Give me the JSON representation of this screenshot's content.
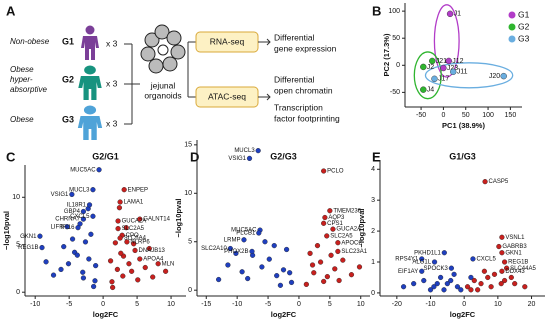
{
  "figure_labels": [
    "A",
    "B",
    "C",
    "D",
    "E"
  ],
  "diagram": {
    "groups": [
      {
        "lines": [
          "Non-obese"
        ],
        "id": "G1",
        "count": "x 3"
      },
      {
        "lines": [
          "Obese",
          "hyper-",
          "absorptive"
        ],
        "id": "G2",
        "count": "x 3"
      },
      {
        "lines": [
          "Obese"
        ],
        "id": "G3",
        "count": "x 3"
      }
    ],
    "organoid_lines": [
      "jejunal",
      "organoids"
    ],
    "assays": [
      {
        "name": "RNA-seq",
        "outputs": [
          [
            "Differential",
            "gene expression"
          ]
        ]
      },
      {
        "name": "ATAC-seq",
        "outputs": [
          [
            "Differential",
            "open chromatin"
          ],
          [
            "Transcription",
            "factor footprinting"
          ]
        ]
      }
    ]
  },
  "chart_data": [
    {
      "type": "scatter",
      "xlabel": "PC1 (38.9%)",
      "ylabel": "PC2 (17.3%)",
      "xlim": [
        -86,
        176
      ],
      "ylim": [
        -77,
        115
      ],
      "xticks": [
        -50,
        0,
        50,
        100,
        150
      ],
      "yticks": [
        -50,
        0,
        50,
        100
      ],
      "legend": "upper right",
      "series": [
        {
          "name": "G1",
          "color": "#b23cc8",
          "x": [
            15,
            12,
            0
          ],
          "values": [
            95,
            8,
            -5
          ],
          "labels": [
            "J1",
            "J12",
            "J23"
          ]
        },
        {
          "name": "G2",
          "color": "#2fb52f",
          "x": [
            -25,
            -45,
            -45
          ],
          "values": [
            8,
            -3,
            -45
          ],
          "labels": [
            "J21",
            "J2",
            "J4"
          ]
        },
        {
          "name": "G3",
          "color": "#6aaee0",
          "x": [
            -20,
            22,
            135
          ],
          "values": [
            -25,
            -12,
            -20
          ],
          "labels": [
            "J17",
            "J11",
            "J20"
          ]
        }
      ]
    },
    {
      "type": "volcano",
      "title": "G2/G1",
      "xlabel": "log2FC",
      "ylabel": "−log10pval",
      "xlim": [
        -11.5,
        12.2
      ],
      "ylim": [
        -0.4,
        13.4
      ],
      "xticks": [
        -10,
        -5,
        0,
        5,
        10
      ],
      "yticks": [
        0,
        5,
        10
      ],
      "series": [
        {
          "color": "#1f3fbf",
          "x": [
            -1.2,
            -2.1,
            -3,
            -4.2,
            -1.8,
            -2.6,
            -5.1,
            -3.4,
            -6.2,
            -1.4,
            -2.9,
            -4.5,
            -7.3,
            -1.1,
            -3.8,
            -2.2,
            -5.8,
            -8.4
          ],
          "values": [
            1.2,
            3.5,
            2.1,
            4.2,
            6.1,
            5.3,
            3,
            7.2,
            2.4,
            0.6,
            1.5,
            5.6,
            1.8,
            2.8,
            3.9,
            8.8,
            4.8,
            3.2
          ]
        },
        {
          "color": "#c8201e",
          "x": [
            1.3,
            2.1,
            3,
            4.2,
            1.8,
            2.6,
            5.1,
            3.4,
            6.2,
            1.4,
            2.9,
            4.5,
            7.3,
            1.1,
            3.8,
            6.8,
            9.2,
            2.4
          ],
          "values": [
            1.1,
            2.4,
            3.8,
            2.2,
            5.2,
            4.1,
            1.3,
            6.8,
            2.6,
            0.5,
            1.7,
            5.1,
            1.6,
            3.3,
            3,
            4.6,
            2.2,
            8.9
          ]
        },
        {
          "color": "#1f3fbf",
          "x": [
            -0.6,
            -1.5,
            -4.6,
            -2,
            -2.9,
            -2.9,
            -1.5,
            -5.3,
            -3.7,
            -9.3,
            -9
          ],
          "values": [
            12.9,
            10.8,
            10.3,
            9.2,
            8.5,
            7.7,
            8,
            6.9,
            6.8,
            5.9,
            4.7
          ],
          "labels": [
            "MUC5AC",
            "MUCL3",
            "VSIG1",
            "IL18R1",
            "GBP4",
            "CHRNA7",
            "CXCL5",
            "LIFR",
            "IFI16",
            "GKN1",
            "REG1B"
          ]
        },
        {
          "color": "#c8201e",
          "x": [
            3.1,
            2.5,
            5.4,
            2.2,
            2.2,
            2.8,
            2.5,
            3.5,
            4.7,
            5.4,
            8.1
          ],
          "values": [
            10.8,
            9.5,
            7.7,
            7.5,
            6.7,
            6,
            5.7,
            5.3,
            4.4,
            3.5,
            3
          ],
          "labels": [
            "ENPEP",
            "LAMA1",
            "GALNT14",
            "GUCA2A",
            "SLC2A5",
            "CPO",
            "SLC6A4",
            "NLRP6",
            "DNAJB13",
            "APOA4",
            "MLN"
          ]
        }
      ]
    },
    {
      "type": "volcano",
      "title": "G2/G3",
      "xlabel": "log2FC",
      "ylabel": "−log10pval",
      "xlim": [
        -16.5,
        11.5
      ],
      "ylim": [
        -0.6,
        15.5
      ],
      "xticks": [
        -15,
        -10,
        -5,
        0,
        5,
        10
      ],
      "yticks": [
        0,
        5,
        10,
        15
      ],
      "series": [
        {
          "color": "#1f3fbf",
          "x": [
            -1.2,
            -2.5,
            -3.6,
            -4.8,
            -6,
            -7.5,
            -9.2,
            -11.5,
            -2,
            -3,
            -5.5,
            -8.3,
            -1.5,
            -4,
            -10.2,
            -13
          ],
          "values": [
            0.8,
            2.1,
            1.5,
            3.2,
            2.4,
            3.6,
            1.9,
            2.6,
            4.2,
            0.5,
            5,
            1.2,
            1.8,
            4.6,
            3.8,
            1.1
          ]
        },
        {
          "color": "#c8201e",
          "x": [
            1.2,
            2.4,
            3.5,
            4.6,
            5.8,
            7.1,
            8.5,
            1.8,
            3,
            4,
            6.5,
            9.8,
            2.2,
            5.2
          ],
          "values": [
            0.6,
            1.8,
            2.9,
            1.4,
            2.2,
            3.1,
            1.6,
            3.8,
            4.6,
            0.9,
            1,
            2.4,
            2.6,
            3.6
          ]
        },
        {
          "color": "#1f3fbf",
          "x": [
            -6.6,
            -8,
            -6.3,
            -6.5,
            -8.9,
            -11.1,
            -7.6
          ],
          "values": [
            14.4,
            13.6,
            6.2,
            5.9,
            5.2,
            4.3,
            4
          ],
          "labels": [
            "MUCL3",
            "VSIG1",
            "MUC5AC",
            "PLCB1",
            "LRMP",
            "SLC2A10",
            "PHOX2B"
          ]
        },
        {
          "color": "#c8201e",
          "x": [
            4,
            5,
            4.2,
            4,
            5.5,
            4.5,
            6.3,
            6.3
          ],
          "values": [
            12.3,
            8.2,
            7.5,
            6.9,
            6.3,
            5.6,
            4.9,
            4
          ],
          "labels": [
            "PCLO",
            "TMEM236",
            "AQP3",
            "CPS1",
            "GUCA2A",
            "SLC2A5",
            "APOC2",
            "SLC23A1"
          ]
        }
      ]
    },
    {
      "type": "volcano",
      "title": "G1/G3",
      "xlabel": "log2FC",
      "ylabel": "−log10pval",
      "xlim": [
        -25,
        24
      ],
      "ylim": [
        -0.1,
        4.3
      ],
      "xticks": [
        -20,
        -10,
        0,
        10,
        20
      ],
      "yticks": [
        0,
        1,
        2,
        3,
        4
      ],
      "series": [
        {
          "color": "#1f3fbf",
          "x": [
            -15,
            -12,
            -9,
            -7,
            -5,
            -3,
            -2,
            -10,
            -6,
            -4,
            -18,
            -8,
            -1,
            2
          ],
          "values": [
            0.3,
            0.4,
            0.2,
            0.5,
            0.3,
            0.6,
            0.2,
            0.1,
            0.1,
            0.4,
            0.2,
            0.3,
            0.1,
            0.5
          ]
        },
        {
          "color": "#c8201e",
          "x": [
            1,
            3,
            5,
            7,
            9,
            12,
            15,
            18,
            4,
            8,
            6,
            2,
            11,
            14
          ],
          "values": [
            0.2,
            0.4,
            0.3,
            0.5,
            0.6,
            0.4,
            0.3,
            0.2,
            0.1,
            0.2,
            0.7,
            0.1,
            0.3,
            0.5
          ]
        },
        {
          "color": "#1f3fbf",
          "x": [
            -12.6,
            -5.9,
            -8.8,
            -3.8,
            -12.6,
            2.6
          ],
          "values": [
            1.1,
            1.3,
            1,
            0.8,
            0.7,
            1.1
          ],
          "labels": [
            "RPS4Y1",
            "PKHD1L1",
            "ALG1L",
            "SPOCK3",
            "EIF1AY",
            "CXCL5"
          ]
        },
        {
          "color": "#c8201e",
          "x": [
            6.2,
            11.2,
            10.3,
            11.2,
            12,
            12.6,
            11.2
          ],
          "values": [
            3.6,
            1.8,
            1.5,
            1.3,
            1,
            0.8,
            0.7
          ],
          "labels": [
            "CASP5",
            "VSNL1",
            "GABRB3",
            "GKN1",
            "REG1B",
            "SLC44A5",
            "DDX43"
          ]
        }
      ]
    }
  ]
}
